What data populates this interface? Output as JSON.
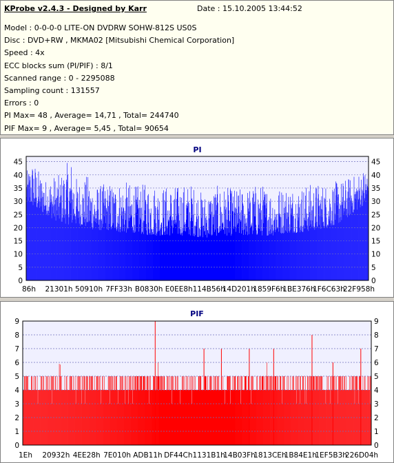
{
  "header": {
    "title": "KProbe v2.4.3 - Designed by Karr",
    "date": "Date : 15.10.2005 13:44:52"
  },
  "info_lines": [
    "Model : 0-0-0-0 LITE-ON DVDRW SOHW-812S  US0S",
    "Disc : DVD+RW , MKMA02 [Mitsubishi Chemical Corporation]",
    "Speed : 4x",
    "ECC blocks sum (PI/PIF) : 8/1",
    "Scanned range : 0 - 2295088",
    "Sampling count : 131557",
    "Errors : 0",
    "PI Max= 48 , Average= 14,71 , Total= 244740",
    "PIF Max= 9 , Average= 5,45 , Total= 90654"
  ],
  "colors": {
    "pi_bar": "#0000ff",
    "pif_bar": "#ff0000",
    "pi_title": "#000080",
    "pif_title": "#000080",
    "grid": "#6f6fbf",
    "plot_bg": "#f0f0ff"
  },
  "chart_data": [
    {
      "type": "bar",
      "title": "PI",
      "ylim": [
        0,
        47
      ],
      "yticks": [
        0,
        5,
        10,
        15,
        20,
        25,
        30,
        35,
        40,
        45
      ],
      "xticks": [
        "86h",
        "21301h",
        "50910h",
        "7FF33h",
        "B0830h",
        "E0EE8h",
        "114B56h",
        "14D201h",
        "1859F6h",
        "1BE376h",
        "1F6C63h",
        "22F958h"
      ],
      "grid": true,
      "mirror_y_axis": true,
      "average": 14.71,
      "max": 48,
      "envelope": [
        [
          0.0,
          30,
          41
        ],
        [
          0.02,
          28,
          46
        ],
        [
          0.04,
          26,
          41
        ],
        [
          0.06,
          25,
          38
        ],
        [
          0.08,
          23,
          40
        ],
        [
          0.1,
          22,
          40
        ],
        [
          0.13,
          21,
          47
        ],
        [
          0.15,
          21,
          38
        ],
        [
          0.18,
          20,
          40
        ],
        [
          0.2,
          19,
          36
        ],
        [
          0.24,
          19,
          37
        ],
        [
          0.28,
          18,
          38
        ],
        [
          0.32,
          18,
          36
        ],
        [
          0.36,
          17,
          37
        ],
        [
          0.4,
          17,
          36
        ],
        [
          0.44,
          17,
          36
        ],
        [
          0.48,
          17,
          37
        ],
        [
          0.52,
          16,
          33
        ],
        [
          0.56,
          17,
          36
        ],
        [
          0.6,
          17,
          35
        ],
        [
          0.64,
          17,
          35
        ],
        [
          0.68,
          17,
          37
        ],
        [
          0.72,
          17,
          35
        ],
        [
          0.76,
          18,
          36
        ],
        [
          0.8,
          18,
          36
        ],
        [
          0.84,
          19,
          37
        ],
        [
          0.88,
          20,
          37
        ],
        [
          0.92,
          22,
          38
        ],
        [
          0.96,
          26,
          40
        ],
        [
          1.0,
          30,
          44
        ]
      ]
    },
    {
      "type": "bar",
      "title": "PIF",
      "ylim": [
        0,
        9
      ],
      "yticks": [
        0,
        1,
        2,
        3,
        4,
        5,
        6,
        7,
        8,
        9
      ],
      "xticks": [
        "1Eh",
        "20932h",
        "4EE28h",
        "7E010h",
        "ADB11h",
        "DF44Ch",
        "1131B1h",
        "14B03Fh",
        "1813CEh",
        "1B84E1h",
        "1EF5B3h",
        "226D04h"
      ],
      "grid": true,
      "mirror_y_axis": true,
      "average": 5.45,
      "max": 9,
      "envelope": [
        [
          0.0,
          3,
          5
        ],
        [
          0.05,
          3,
          5
        ],
        [
          0.1,
          3,
          6
        ],
        [
          0.15,
          3,
          5
        ],
        [
          0.2,
          3,
          5
        ],
        [
          0.25,
          3,
          5
        ],
        [
          0.3,
          3,
          5
        ],
        [
          0.35,
          3,
          6
        ],
        [
          0.4,
          3,
          6
        ],
        [
          0.45,
          3,
          5
        ],
        [
          0.5,
          3,
          5
        ],
        [
          0.55,
          3,
          5
        ],
        [
          0.6,
          3,
          6
        ],
        [
          0.65,
          3,
          5
        ],
        [
          0.7,
          3,
          6
        ],
        [
          0.75,
          3,
          5
        ],
        [
          0.8,
          3,
          5
        ],
        [
          0.85,
          3,
          6
        ],
        [
          0.9,
          3,
          5
        ],
        [
          0.95,
          3,
          5
        ],
        [
          1.0,
          3,
          6
        ]
      ],
      "spikes": [
        [
          0.38,
          9
        ],
        [
          0.52,
          7
        ],
        [
          0.57,
          7
        ],
        [
          0.65,
          7
        ],
        [
          0.72,
          7
        ],
        [
          0.83,
          8
        ],
        [
          0.89,
          6
        ],
        [
          0.97,
          7
        ]
      ]
    }
  ]
}
